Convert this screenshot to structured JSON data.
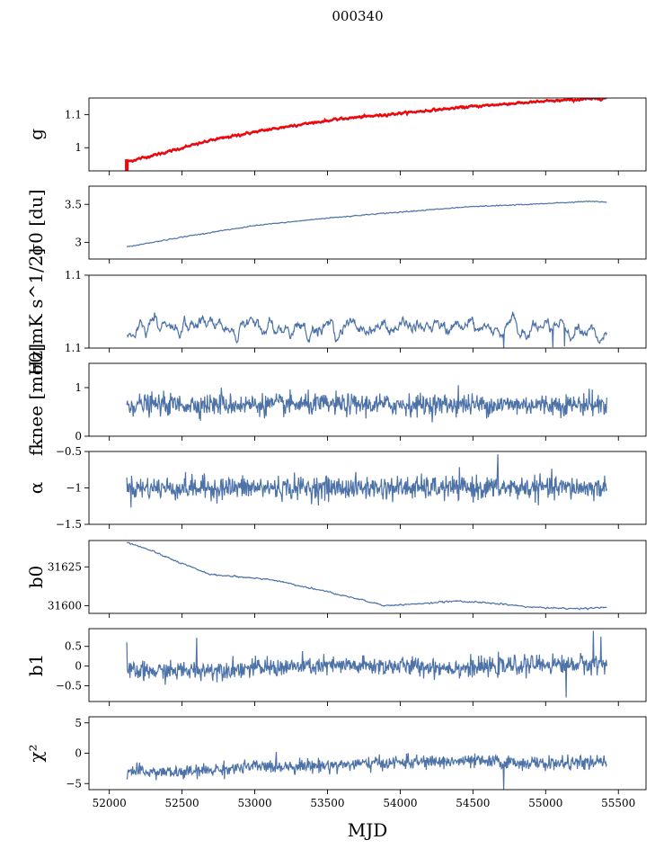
{
  "title": "000340",
  "xlabel": "MJD",
  "colors": {
    "series": "#4c72a8",
    "highlight": "#ff0000",
    "axis": "#000000"
  },
  "chart_data": [
    {
      "type": "line",
      "ylabel": "g",
      "ylim": [
        0.93,
        1.15
      ],
      "yticks": [
        1.0,
        1.1
      ],
      "trend": [
        [
          52120,
          0.955
        ],
        [
          52400,
          0.985
        ],
        [
          52700,
          1.02
        ],
        [
          53000,
          1.045
        ],
        [
          53300,
          1.067
        ],
        [
          53600,
          1.085
        ],
        [
          53900,
          1.097
        ],
        [
          54200,
          1.11
        ],
        [
          54500,
          1.122
        ],
        [
          54800,
          1.132
        ],
        [
          55100,
          1.14
        ],
        [
          55420,
          1.147
        ]
      ],
      "noise": 0.002,
      "smooth": 2,
      "overlay": {
        "name": "",
        "color": "#ff0000",
        "offset": 0.003,
        "spikes": [
          [
            52120,
            0.93,
            0.965
          ]
        ]
      }
    },
    {
      "type": "line",
      "ylabel": "σ0 [du]",
      "ylim": [
        2.78,
        3.74
      ],
      "yticks": [
        3.0,
        3.5
      ],
      "trend": [
        [
          52120,
          2.94
        ],
        [
          52500,
          3.07
        ],
        [
          53000,
          3.22
        ],
        [
          53500,
          3.32
        ],
        [
          54000,
          3.4
        ],
        [
          54500,
          3.47
        ],
        [
          55000,
          3.51
        ],
        [
          55300,
          3.54
        ],
        [
          55420,
          3.53
        ]
      ],
      "noise": 0.004,
      "smooth": 2
    },
    {
      "type": "line",
      "ylabel": "σ0[mK s^1/2]",
      "ylim": [
        1.1,
        1.12
      ],
      "yticks": [
        1.1,
        1.12
      ],
      "trend": [
        [
          52120,
          1.1025
        ],
        [
          52200,
          1.1065
        ],
        [
          52500,
          1.1063
        ],
        [
          53000,
          1.1058
        ],
        [
          53500,
          1.1056
        ],
        [
          54000,
          1.1058
        ],
        [
          54500,
          1.1055
        ],
        [
          55000,
          1.1055
        ],
        [
          55420,
          1.1025
        ]
      ],
      "noise": 0.0018,
      "smooth": 5,
      "dips": [
        [
          54710,
          1.1
        ],
        [
          55050,
          1.1002
        ],
        [
          55130,
          1.1005
        ]
      ]
    },
    {
      "type": "line",
      "ylabel": "fknee [mHz]",
      "ylim": [
        0,
        1.5
      ],
      "yticks": [
        0,
        1
      ],
      "trend": [
        [
          52120,
          0.65
        ],
        [
          55420,
          0.65
        ]
      ],
      "noise": 0.11,
      "smooth": 1,
      "spikes_up": [
        [
          54400,
          1.05
        ],
        [
          52770,
          1.0
        ],
        [
          55300,
          0.98
        ]
      ]
    },
    {
      "type": "line",
      "ylabel": "α",
      "ylim": [
        -1.5,
        -0.5
      ],
      "yticks": [
        -1.5,
        -1.0,
        -0.5
      ],
      "trend": [
        [
          52120,
          -1.0
        ],
        [
          55420,
          -1.0
        ]
      ],
      "noise": 0.08,
      "smooth": 1,
      "spikes_up": [
        [
          54670,
          -0.54
        ]
      ]
    },
    {
      "type": "line",
      "ylabel": "b0",
      "ylim": [
        31595,
        31642
      ],
      "yticks": [
        31600,
        31625
      ],
      "trend": [
        [
          52120,
          31641
        ],
        [
          52300,
          31635
        ],
        [
          52500,
          31627
        ],
        [
          52700,
          31620
        ],
        [
          53100,
          31617
        ],
        [
          53500,
          31609
        ],
        [
          53900,
          31600
        ],
        [
          54100,
          31601
        ],
        [
          54400,
          31603
        ],
        [
          54700,
          31601
        ],
        [
          54900,
          31599
        ],
        [
          55200,
          31598
        ],
        [
          55420,
          31599
        ]
      ],
      "noise": 0.3,
      "smooth": 2
    },
    {
      "type": "line",
      "ylabel": "b1",
      "ylim": [
        -0.9,
        0.95
      ],
      "yticks": [
        -0.5,
        0.0,
        0.5
      ],
      "trend": [
        [
          52120,
          -0.15
        ],
        [
          52500,
          -0.12
        ],
        [
          53000,
          -0.05
        ],
        [
          53500,
          0.0
        ],
        [
          54000,
          0.0
        ],
        [
          54500,
          -0.05
        ],
        [
          55000,
          0.05
        ],
        [
          55420,
          0.05
        ]
      ],
      "noise": 0.12,
      "smooth": 1,
      "spikes_up": [
        [
          52120,
          0.6
        ],
        [
          52600,
          0.72
        ],
        [
          55330,
          0.9
        ],
        [
          55380,
          0.75
        ]
      ],
      "dips": [
        [
          55140,
          -0.8
        ]
      ]
    },
    {
      "type": "line",
      "ylabel": "χ²",
      "ylim": [
        -6,
        6
      ],
      "yticks": [
        -5,
        0,
        5
      ],
      "trend": [
        [
          52120,
          -3
        ],
        [
          52500,
          -3.2
        ],
        [
          53000,
          -2.2
        ],
        [
          53500,
          -2.0
        ],
        [
          54000,
          -1.5
        ],
        [
          54500,
          -1.3
        ],
        [
          55000,
          -1.7
        ],
        [
          55420,
          -1.5
        ]
      ],
      "noise": 0.55,
      "smooth": 1,
      "dips": [
        [
          54710,
          -6
        ]
      ]
    }
  ],
  "xaxis": {
    "xlim": [
      51860,
      55690
    ],
    "ticks": [
      52000,
      52500,
      53000,
      53500,
      54000,
      54500,
      55000,
      55500
    ]
  }
}
